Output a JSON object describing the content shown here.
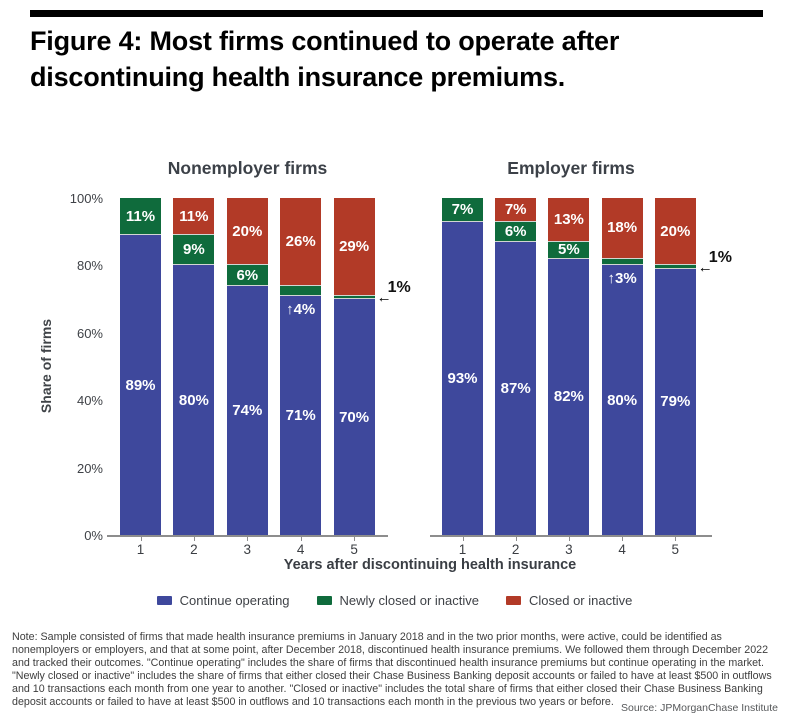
{
  "header": {
    "title": "Figure 4: Most firms continued to operate after discontinuing health insurance premiums."
  },
  "chart_data": {
    "type": "bar",
    "stacked": true,
    "grid": false,
    "ylabel": "Share of firms",
    "xlabel": "Years after discontinuing health insurance",
    "ylim": [
      0,
      100
    ],
    "ytick_values": [
      0,
      20,
      40,
      60,
      80,
      100
    ],
    "yticks": [
      "0%",
      "20%",
      "40%",
      "60%",
      "80%",
      "100%"
    ],
    "categories": [
      "1",
      "2",
      "3",
      "4",
      "5"
    ],
    "legend_position": "bottom",
    "legend": [
      {
        "label": "Continue operating",
        "color": "#3E489C"
      },
      {
        "label": "Newly closed or inactive",
        "color": "#0F6B3C"
      },
      {
        "label": "Closed or inactive",
        "color": "#B23A27"
      }
    ],
    "panels": [
      {
        "title": "Nonemployer firms",
        "series": [
          {
            "name": "Continue operating",
            "values": [
              89,
              80,
              74,
              71,
              70
            ]
          },
          {
            "name": "Newly closed or inactive",
            "values": [
              11,
              9,
              6,
              4,
              1
            ]
          },
          {
            "name": "Closed or inactive",
            "values": [
              0,
              11,
              20,
              26,
              29
            ]
          }
        ],
        "bars": [
          {
            "category": "1",
            "continue_pct": 89,
            "newly_pct": 11,
            "closed_pct": 0,
            "continue_label": "89%",
            "newly_label": "11%",
            "newly_label_style": "inside",
            "closed_label": ""
          },
          {
            "category": "2",
            "continue_pct": 80,
            "newly_pct": 9,
            "closed_pct": 11,
            "continue_label": "80%",
            "newly_label": "9%",
            "newly_label_style": "inside",
            "closed_label": "11%"
          },
          {
            "category": "3",
            "continue_pct": 74,
            "newly_pct": 6,
            "closed_pct": 20,
            "continue_label": "74%",
            "newly_label": "6%",
            "newly_label_style": "inside",
            "closed_label": "20%"
          },
          {
            "category": "4",
            "continue_pct": 71,
            "newly_pct": 4,
            "closed_pct": 26,
            "continue_label": "71%",
            "newly_label": "↑4%",
            "newly_label_style": "arrow",
            "closed_label": "26%"
          },
          {
            "category": "5",
            "continue_pct": 70,
            "newly_pct": 1,
            "closed_pct": 29,
            "continue_label": "70%",
            "newly_label": "1%",
            "newly_label_style": "outside",
            "closed_label": "29%"
          }
        ]
      },
      {
        "title": "Employer firms",
        "series": [
          {
            "name": "Continue operating",
            "values": [
              93,
              87,
              82,
              80,
              79
            ]
          },
          {
            "name": "Newly closed or inactive",
            "values": [
              7,
              6,
              5,
              3,
              1
            ]
          },
          {
            "name": "Closed or inactive",
            "values": [
              0,
              7,
              13,
              18,
              20
            ]
          }
        ],
        "bars": [
          {
            "category": "1",
            "continue_pct": 93,
            "newly_pct": 7,
            "closed_pct": 0,
            "continue_label": "93%",
            "newly_label": "7%",
            "newly_label_style": "inside",
            "closed_label": ""
          },
          {
            "category": "2",
            "continue_pct": 87,
            "newly_pct": 6,
            "closed_pct": 7,
            "continue_label": "87%",
            "newly_label": "6%",
            "newly_label_style": "inside",
            "closed_label": "7%"
          },
          {
            "category": "3",
            "continue_pct": 82,
            "newly_pct": 5,
            "closed_pct": 13,
            "continue_label": "82%",
            "newly_label": "5%",
            "newly_label_style": "inside",
            "closed_label": "13%"
          },
          {
            "category": "4",
            "continue_pct": 80,
            "newly_pct": 3,
            "closed_pct": 18,
            "continue_label": "80%",
            "newly_label": "↑3%",
            "newly_label_style": "arrow",
            "closed_label": "18%"
          },
          {
            "category": "5",
            "continue_pct": 79,
            "newly_pct": 1,
            "closed_pct": 20,
            "continue_label": "79%",
            "newly_label": "1%",
            "newly_label_style": "outside",
            "closed_label": "20%"
          }
        ]
      }
    ]
  },
  "footer": {
    "note": "Note: Sample consisted of firms that made health insurance premiums in January 2018 and in the two prior months, were active, could be identified as nonemployers or employers, and that at some point, after December 2018, discontinued health insurance premiums. We followed them through December 2022 and tracked their outcomes. \"Continue operating\" includes the share of firms that discontinued health insurance premiums but continue operating in the market. \"Newly closed or inactive\" includes the share of firms that either closed their Chase Business Banking deposit accounts or failed to have at least $500 in outflows and 10 transactions each month from one year to another. \"Closed or inactive\" includes the total share of firms that either closed their Chase Business Banking deposit accounts or failed to have at least $500 in outflows and 10 transactions each month in the previous two years or before.",
    "source": "Source: JPMorganChase Institute"
  }
}
